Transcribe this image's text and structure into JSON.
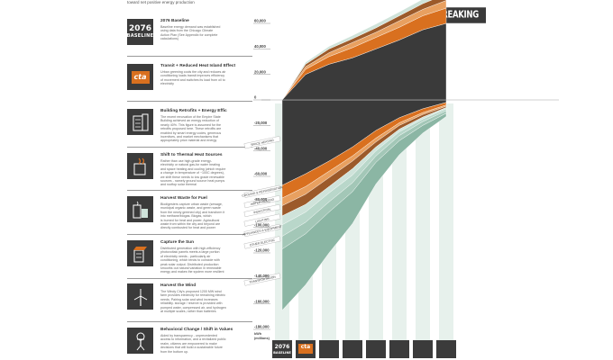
{
  "header": {
    "subtitle": "toward net positive energy production",
    "brand_title": "BREAKING BAD"
  },
  "panels": [
    {
      "icon": "baseline-2076-icon",
      "icon_text_1": "2076",
      "icon_text_2": "BASELINE",
      "title": "2076 Baseline",
      "lines": [
        "Baseline energy demand was established",
        "using data from the Chicago Climate",
        "Action Plan (See Appendix for complete",
        "calculations)"
      ]
    },
    {
      "icon": "cta-logo-icon",
      "icon_text_1": "cta",
      "title": "Transit + Reduced Heat Island Effect",
      "lines": [
        "Urban greening cools the city and reduces air",
        "conditioning loads transit improves efficiency",
        "of movement and switches its load from oil to",
        "electricity"
      ]
    },
    {
      "icon": "building-retrofit-icon",
      "title": "Building Retrofits + Energy Effic",
      "lines": [
        "The recent renovation of the Empire State",
        "Building achieved an energy reduction of",
        "nearly 40%. This figure is assumed for the",
        "retrofits proposed here. These retrofits are",
        "enabled by smart energy codes, generous",
        "incentives, and market mechanisms that",
        "appropriately price material and energy"
      ]
    },
    {
      "icon": "thermal-heat-icon",
      "title": "Shift to Thermal Heat Sources",
      "lines": [
        "Rather than use high-grade energy-",
        "electricity or natural gas-for water heating",
        "and space heating and cooling (which require",
        "a change in temperature of ~100C degrees),",
        "we shift these needs to low grade renewable",
        "sources - namely ground source heat pumps",
        "and rooftop solar thermal"
      ]
    },
    {
      "icon": "waste-fuel-icon",
      "title": "Harvest Waste for Fuel",
      "lines": [
        "Biodigesters capture urban waste (sewage,",
        "municipal organic waste, and green waste",
        "from the newly greened city) and transform it",
        "into methane/biogas. Biogas, which",
        "is burned for heat and power. Agricultural",
        "waste from within the city and beyond are",
        "directly combusted for heat and power"
      ]
    },
    {
      "icon": "solar-capture-icon",
      "title": "Capture the Sun",
      "lines": [
        "Distributed generation with high-efficiency",
        "photovoltaic panels meets a large portion",
        "of electricity needs - particularly air",
        "conditioning, which tends to coincide with",
        "peak solar output. Distributed production",
        "smooths out natural variation in renewable",
        "energy and makes the system more resilient"
      ]
    },
    {
      "icon": "wind-turbine-icon",
      "title": "Harvest the Wind",
      "lines": [
        "The Windy City's proposed 1200 MW wind",
        "farm provides electricity for remaining electric",
        "needs. Pairing solar and wind increases",
        "reliability. storage / reserve is provided with",
        "pumped water, compressed air, and hydrogen",
        "at multiple scales, rather than batteries"
      ]
    },
    {
      "icon": "globe-figure-icon",
      "title": "Behavioral Change / Shift in Values",
      "lines": [
        "Aided by transparency - unprecedented",
        "access to information, and a revitalized public",
        "realm, citizens are empowered to make",
        "decisions that will build a sustainable future",
        "from the bottom up."
      ]
    }
  ],
  "chart_data": {
    "type": "area",
    "title": "BREAKING BAD",
    "subtitle": "toward net positive energy production",
    "ylabel_lines": [
      "kWh",
      "(millions)"
    ],
    "yticks": [
      60000,
      40000,
      20000,
      0,
      -20000,
      -40000,
      -60000,
      -80000,
      -100000,
      -120000,
      -140000,
      -160000,
      -180000
    ],
    "ytick_labels": [
      "60,000",
      "40,000",
      "20,000",
      "0",
      "-20,000",
      "-40,000",
      "-60,000",
      "-80,000",
      "-100,000",
      "-120,000",
      "-140,000",
      "-160,000",
      "-180,000"
    ],
    "ylim": [
      -180000,
      60000
    ],
    "x_categories": [
      "2076 Baseline",
      "Transit + Reduced Heat Island Effect",
      "Building Retrofits + Energy Efficiency",
      "Shift to Thermal Heat Sources",
      "Harvest Waste for Fuel",
      "Capture the Sun",
      "Harvest the Wind",
      "Behavioral Change / Shift in Values"
    ],
    "x_icon_labels": [
      [
        "2076",
        "BASELINE"
      ],
      [
        "cta"
      ],
      [
        ""
      ],
      [
        ""
      ],
      [
        ""
      ],
      [
        ""
      ],
      [
        ""
      ],
      [
        ""
      ]
    ],
    "series": [
      {
        "name": "SPACE HEATING",
        "color": "#3a3a3a",
        "values": [
          -67000,
          -58000,
          -48000,
          -37000,
          -24000,
          -14000,
          -7000,
          -2000
        ]
      },
      {
        "name": "COOLING & REFRIGERATION",
        "color": "#d9701f",
        "values": [
          -10000,
          -10000,
          -8000,
          -7000,
          -6000,
          -4000,
          -3000,
          -2000
        ]
      },
      {
        "name": "WATER HEATING",
        "color": "#e8a060",
        "values": [
          -6000,
          -6000,
          -5000,
          -4000,
          -3000,
          -2000,
          -1500,
          -1000
        ]
      },
      {
        "name": "INDUSTRIAL",
        "color": "#9c5a2a",
        "values": [
          -8000,
          -8000,
          -7000,
          -6000,
          -4000,
          -3000,
          -2000,
          -1000
        ]
      },
      {
        "name": "LIGHTING",
        "color": "#cfe3da",
        "values": [
          -7000,
          -6000,
          -5000,
          -5000,
          -3000,
          -2000,
          -1500,
          -1000
        ]
      },
      {
        "name": "APPLIANCES & EQUIPMENT",
        "color": "#b9d7ca",
        "values": [
          -9000,
          -8000,
          -7000,
          -6000,
          -4000,
          -3000,
          -2000,
          -1500
        ]
      },
      {
        "name": "OTHER ELECTRIC",
        "color": "#a3c7b7",
        "values": [
          -10000,
          -9000,
          -8000,
          -7000,
          -5000,
          -4000,
          -3000,
          -2000
        ]
      },
      {
        "name": "TRANSPORTATION",
        "color": "#8bb6a4",
        "values": [
          -48000,
          -40000,
          -32000,
          -25000,
          -17000,
          -11000,
          -6000,
          -2500
        ]
      },
      {
        "name": "",
        "color": "#3a3a3a",
        "values": [
          0,
          20000,
          28000,
          33000,
          40000,
          47000,
          55000,
          60000
        ]
      },
      {
        "name": "",
        "color": "#d9701f",
        "values": [
          0,
          4000,
          6000,
          8000,
          9000,
          10000,
          11000,
          12000
        ]
      },
      {
        "name": "",
        "color": "#e8a060",
        "values": [
          0,
          2000,
          3000,
          4000,
          4000,
          5000,
          5000,
          6000
        ]
      },
      {
        "name": "",
        "color": "#9c5a2a",
        "values": [
          0,
          2000,
          3000,
          3000,
          3500,
          4000,
          4500,
          5000
        ]
      },
      {
        "name": "",
        "color": "#cfe3da",
        "values": [
          0,
          1500,
          2000,
          2500,
          3000,
          3000,
          3500,
          4000
        ]
      }
    ],
    "label_positions": "along-left-edge",
    "grid": false
  }
}
